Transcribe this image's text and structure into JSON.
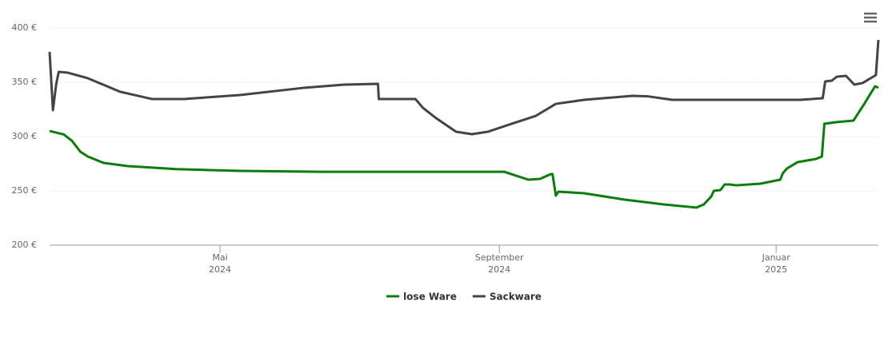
{
  "chart_data": {
    "type": "line",
    "xlim": [
      2024.126,
      2025.123
    ],
    "xticks": [
      {
        "value": 2024.331,
        "label": "Mai\n2024"
      },
      {
        "value": 2024.667,
        "label": "September\n2024"
      },
      {
        "value": 2025.0,
        "label": "Januar\n2025"
      }
    ],
    "ylim": [
      200,
      400
    ],
    "yticks": [
      {
        "value": 200,
        "label": "200 €"
      },
      {
        "value": 250,
        "label": "250 €"
      },
      {
        "value": 300,
        "label": "300 €"
      },
      {
        "value": 350,
        "label": "350 €"
      },
      {
        "value": 400,
        "label": "400 €"
      }
    ],
    "grid": true,
    "legend": "bottom",
    "series": [
      {
        "name": "lose Ware",
        "color": "#0a7d0a",
        "x": [
          2024.126,
          2024.143,
          2024.153,
          2024.163,
          2024.172,
          2024.191,
          2024.22,
          2024.278,
          2024.355,
          2024.451,
          2024.673,
          2024.687,
          2024.702,
          2024.716,
          2024.729,
          2024.731,
          2024.735,
          2024.738,
          2024.769,
          2024.817,
          2024.865,
          2024.904,
          2024.913,
          2024.922,
          2024.925,
          2024.933,
          2024.938,
          2024.944,
          2024.952,
          2024.981,
          2025.005,
          2025.008,
          2025.013,
          2025.026,
          2025.048,
          2025.055,
          2025.058,
          2025.072,
          2025.093,
          2025.106,
          2025.119,
          2025.123
        ],
        "values": [
          305.1,
          302,
          296,
          286,
          281.6,
          275.7,
          272.8,
          270,
          268.4,
          267.6,
          267.6,
          264,
          260.3,
          261,
          265.4,
          265.4,
          245.6,
          249.3,
          247.8,
          242,
          237.5,
          234.6,
          237.5,
          244.9,
          250,
          250.7,
          255.9,
          255.9,
          255.1,
          256.6,
          260.3,
          266.2,
          270.6,
          276.5,
          279.4,
          281.6,
          311.8,
          313.2,
          314.7,
          330.1,
          346.3,
          344.9
        ]
      },
      {
        "name": "Sackware",
        "color": "#434348",
        "x": [
          2024.126,
          2024.13,
          2024.134,
          2024.137,
          2024.148,
          2024.172,
          2024.211,
          2024.249,
          2024.288,
          2024.355,
          2024.432,
          2024.48,
          2024.521,
          2024.522,
          2024.566,
          2024.575,
          2024.591,
          2024.615,
          2024.634,
          2024.653,
          2024.682,
          2024.711,
          2024.735,
          2024.769,
          2024.827,
          2024.846,
          2024.875,
          2025.029,
          2025.056,
          2025.059,
          2025.067,
          2025.073,
          2025.084,
          2025.094,
          2025.104,
          2025.12,
          2025.123
        ],
        "values": [
          378,
          324.3,
          348.5,
          359.6,
          358.8,
          353.7,
          341.2,
          334.6,
          334.6,
          338.2,
          344.9,
          347.8,
          348.5,
          334.6,
          334.6,
          326.5,
          316.9,
          304.4,
          302.2,
          304.4,
          311.8,
          319.1,
          330.1,
          333.8,
          337.5,
          337,
          333.8,
          333.8,
          335.3,
          350.7,
          351.5,
          355.1,
          355.9,
          347.8,
          349.3,
          356.6,
          389
        ]
      }
    ]
  }
}
